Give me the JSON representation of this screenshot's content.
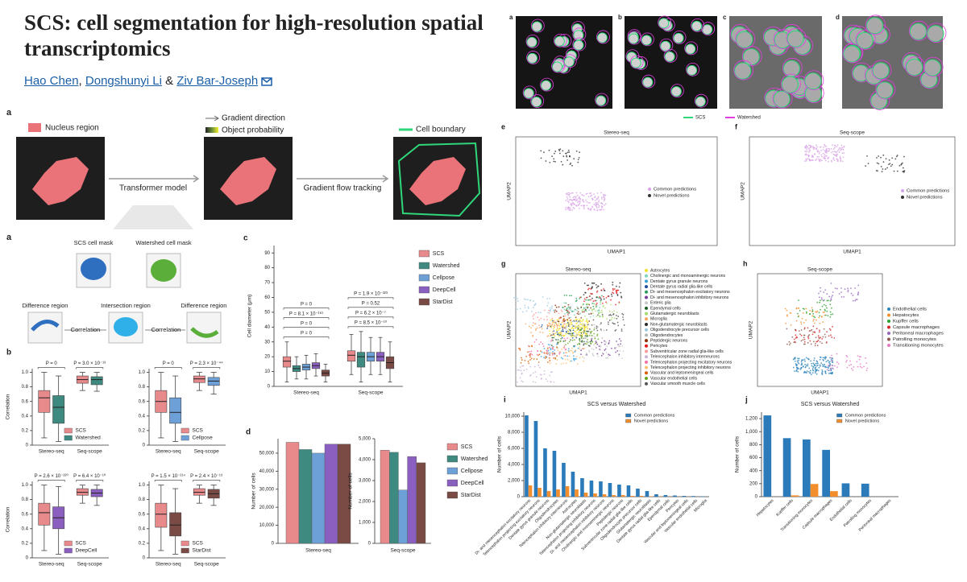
{
  "header": {
    "title": "SCS: cell segmentation for high-resolution spatial transcriptomics",
    "authors": [
      "Hao Chen",
      "Dongshunyi Li",
      "Ziv Bar-Joseph"
    ]
  },
  "figure_top": {
    "panel": "a",
    "nucleus": "Nucleus region",
    "gradient": "Gradient direction",
    "probability": "Object probability",
    "boundary": "Cell boundary",
    "steps": [
      "Transformer model",
      "Gradient flow tracking"
    ]
  },
  "figure_correlation": {
    "panel": "a",
    "masks": [
      "SCS cell mask",
      "Watershed cell mask"
    ],
    "regions": [
      "Difference region",
      "Intersection region",
      "Difference region"
    ],
    "operation": [
      "Correlation",
      "Correlation"
    ]
  },
  "images": {
    "panels": [
      "a",
      "b",
      "c",
      "d"
    ],
    "legend": [
      {
        "label": "SCS",
        "color": "#2fd67a"
      },
      {
        "label": "Watershed",
        "color": "#e040e0"
      }
    ]
  },
  "umaps": [
    {
      "panel": "e",
      "title": "Stereo-seq",
      "xlabel": "UMAP1",
      "ylabel": "UMAP2",
      "legend": [
        {
          "label": "Common predictions",
          "color": "#d8a4e6"
        },
        {
          "label": "Novel predictions",
          "color": "#333333"
        }
      ]
    },
    {
      "panel": "f",
      "title": "Seq-scope",
      "xlabel": "UMAP1",
      "ylabel": "UMAP2",
      "legend": [
        {
          "label": "Common predictions",
          "color": "#d8a4e6"
        },
        {
          "label": "Novel predictions",
          "color": "#333333"
        }
      ]
    },
    {
      "panel": "g",
      "title": "Stereo-seq",
      "xlabel": "UMAP1",
      "ylabel": "UMAP2",
      "legend": [
        {
          "label": "Astrocytes",
          "color": "#f2e12e"
        },
        {
          "label": "Cholinergic and monoaminergic neurons",
          "color": "#7fd4c1"
        },
        {
          "label": "Dentate gyrus granule neurons",
          "color": "#3aa0d8"
        },
        {
          "label": "Dentate gyrus radial glia-like cells",
          "color": "#1f4e9c"
        },
        {
          "label": "Di- and mesencephalon excitatory neurons",
          "color": "#2e9e5b"
        },
        {
          "label": "Di- and mesencephalon inhibitory neurons",
          "color": "#7b3f98"
        },
        {
          "label": "Enteric glia",
          "color": "#c9c9c9"
        },
        {
          "label": "Ependymal cells",
          "color": "#1b5e20"
        },
        {
          "label": "Glutamatergic neuroblasts",
          "color": "#a6d96a"
        },
        {
          "label": "Microglia",
          "color": "#f7a35c"
        },
        {
          "label": "Non-glutamatergic neuroblasts",
          "color": "#2b2b2b"
        },
        {
          "label": "Oligodendrocyte precursor cells",
          "color": "#9ecae1"
        },
        {
          "label": "Oligodendrocytes",
          "color": "#b3b3b3"
        },
        {
          "label": "Peptidergic neurons",
          "color": "#8c2d04"
        },
        {
          "label": "Pericytes",
          "color": "#e31a1c"
        },
        {
          "label": "Subventricular zone radial glia-like cells",
          "color": "#fb9a99"
        },
        {
          "label": "Telencephalon inhibitory interneurons",
          "color": "#cab2d6"
        },
        {
          "label": "Telencephalon projecting excitatory neurons",
          "color": "#f46fa8"
        },
        {
          "label": "Telencephalon projecting inhibitory neurons",
          "color": "#fdbf6f"
        },
        {
          "label": "Vascular and leptomeningeal cells",
          "color": "#d95f02"
        },
        {
          "label": "Vascular endothelial cells",
          "color": "#66a61e"
        },
        {
          "label": "Vascular smooth muscle cells",
          "color": "#555555"
        }
      ]
    },
    {
      "panel": "h",
      "title": "Seq-scope",
      "xlabel": "UMAP1",
      "ylabel": "UMAP2",
      "legend": [
        {
          "label": "Endothelial cells",
          "color": "#2b83ba"
        },
        {
          "label": "Hepatocytes",
          "color": "#f28e2b"
        },
        {
          "label": "Kupffer cells",
          "color": "#2ca02c"
        },
        {
          "label": "Capsule macrophages",
          "color": "#d62728"
        },
        {
          "label": "Peritoneal macrophages",
          "color": "#9467bd"
        },
        {
          "label": "Patrolling monocytes",
          "color": "#8c564b"
        },
        {
          "label": "Transitioning monocytes",
          "color": "#e377c2"
        }
      ]
    }
  ],
  "chart_data": [
    {
      "type": "box",
      "panel": "b",
      "ylabel": "Correlation",
      "categories": [
        "Stereo-seq",
        "Seq-scope"
      ],
      "ylim": [
        0,
        1.05
      ],
      "yticks": [
        0,
        0.2,
        0.4,
        0.6,
        0.8,
        {
          "value": 1,
          "label": "1.0"
        }
      ],
      "legend": "lower right",
      "annotations": [
        [
          "P = 0"
        ],
        [
          "P = 3.0 × 10⁻¹³"
        ]
      ],
      "series": [
        {
          "name": "SCS",
          "color": "#e8898b",
          "values": [
            {
              "whislo": 0.1,
              "q1": 0.45,
              "med": 0.65,
              "q3": 0.75,
              "whishi": 1.0
            },
            {
              "whislo": 0.75,
              "q1": 0.85,
              "med": 0.9,
              "q3": 0.95,
              "whishi": 1.0
            }
          ]
        },
        {
          "name": "Watershed",
          "color": "#3f8a80",
          "values": [
            {
              "whislo": 0.05,
              "q1": 0.3,
              "med": 0.52,
              "q3": 0.68,
              "whishi": 0.95
            },
            {
              "whislo": 0.74,
              "q1": 0.83,
              "med": 0.9,
              "q3": 0.94,
              "whishi": 1.0
            }
          ]
        }
      ]
    },
    {
      "type": "box",
      "categories": [
        "Stereo-seq",
        "Seq-scope"
      ],
      "ylim": [
        0,
        1.05
      ],
      "yticks": [
        0,
        0.2,
        0.4,
        0.6,
        0.8,
        {
          "value": 1,
          "label": "1.0"
        }
      ],
      "legend": "lower right",
      "annotations": [
        [
          "P = 0"
        ],
        [
          "P = 2.3 × 10⁻⁴⁴"
        ]
      ],
      "series": [
        {
          "name": "SCS",
          "color": "#e8898b",
          "values": [
            {
              "whislo": 0.1,
              "q1": 0.45,
              "med": 0.6,
              "q3": 0.75,
              "whishi": 1.0
            },
            {
              "whislo": 0.75,
              "q1": 0.86,
              "med": 0.91,
              "q3": 0.95,
              "whishi": 1.0
            }
          ]
        },
        {
          "name": "Cellpose",
          "color": "#6ea0d8",
          "values": [
            {
              "whislo": 0.05,
              "q1": 0.3,
              "med": 0.45,
              "q3": 0.65,
              "whishi": 0.95
            },
            {
              "whislo": 0.7,
              "q1": 0.82,
              "med": 0.88,
              "q3": 0.93,
              "whishi": 1.0
            }
          ]
        }
      ]
    },
    {
      "type": "box",
      "ylabel": "Correlation",
      "categories": [
        "Stereo-seq",
        "Seq-scope"
      ],
      "ylim": [
        0,
        1.05
      ],
      "yticks": [
        0,
        0.2,
        0.4,
        0.6,
        0.8,
        {
          "value": 1,
          "label": "1.0"
        }
      ],
      "legend": "lower right",
      "annotations": [
        [
          "P = 2.6 × 10⁻²²⁰"
        ],
        [
          "P = 6.4 × 10⁻¹⁰"
        ]
      ],
      "series": [
        {
          "name": "SCS",
          "color": "#e8898b",
          "values": [
            {
              "whislo": 0.1,
              "q1": 0.45,
              "med": 0.62,
              "q3": 0.75,
              "whishi": 1.0
            },
            {
              "whislo": 0.75,
              "q1": 0.86,
              "med": 0.9,
              "q3": 0.95,
              "whishi": 1.0
            }
          ]
        },
        {
          "name": "DeepCell",
          "color": "#8b5fbf",
          "values": [
            {
              "whislo": 0.05,
              "q1": 0.4,
              "med": 0.55,
              "q3": 0.7,
              "whishi": 0.98
            },
            {
              "whislo": 0.72,
              "q1": 0.84,
              "med": 0.89,
              "q3": 0.94,
              "whishi": 1.0
            }
          ]
        }
      ]
    },
    {
      "type": "box",
      "categories": [
        "Stereo-seq",
        "Seq-scope"
      ],
      "ylim": [
        0,
        1.05
      ],
      "yticks": [
        0,
        0.2,
        0.4,
        0.6,
        0.8,
        {
          "value": 1,
          "label": "1.0"
        }
      ],
      "legend": "lower right",
      "annotations": [
        [
          "P = 1.5 × 10⁻²¹⁴"
        ],
        [
          "P = 2.4 × 10⁻¹⁹"
        ]
      ],
      "series": [
        {
          "name": "SCS",
          "color": "#e8898b",
          "values": [
            {
              "whislo": 0.1,
              "q1": 0.42,
              "med": 0.6,
              "q3": 0.75,
              "whishi": 1.0
            },
            {
              "whislo": 0.75,
              "q1": 0.86,
              "med": 0.9,
              "q3": 0.95,
              "whishi": 1.0
            }
          ]
        },
        {
          "name": "StarDist",
          "color": "#7a4a44",
          "values": [
            {
              "whislo": 0.05,
              "q1": 0.3,
              "med": 0.45,
              "q3": 0.62,
              "whishi": 0.95
            },
            {
              "whislo": 0.72,
              "q1": 0.82,
              "med": 0.88,
              "q3": 0.94,
              "whishi": 1.0
            }
          ]
        }
      ]
    },
    {
      "type": "box",
      "panel": "c",
      "ylabel": "Cell diameter (μm)",
      "categories": [
        "Stereo-seq",
        "Seq-scope"
      ],
      "ylim": [
        0,
        95
      ],
      "yticks": [
        0,
        10,
        20,
        30,
        40,
        50,
        60,
        70,
        80,
        90
      ],
      "legend": "right",
      "annotations": [
        [
          "P = 0",
          "P = 0",
          "P = 8.1 × 10⁻¹⁶¹",
          "P = 0"
        ],
        [
          "P = 8.5 × 10⁻¹⁰",
          "P = 6.2 × 10⁻⁷",
          "P = 0.52",
          "P = 1.9 × 10⁻³²³"
        ]
      ],
      "series": [
        {
          "name": "SCS",
          "color": "#e8898b",
          "values": [
            {
              "whislo": 3,
              "q1": 13,
              "med": 17,
              "q3": 20,
              "whishi": 30
            },
            {
              "whislo": 8,
              "q1": 17,
              "med": 21,
              "q3": 24,
              "whishi": 35
            }
          ]
        },
        {
          "name": "Watershed",
          "color": "#3f8a80",
          "values": [
            {
              "whislo": 5,
              "q1": 10,
              "med": 12,
              "q3": 14,
              "whishi": 20
            },
            {
              "whislo": 3,
              "q1": 13,
              "med": 20,
              "q3": 23,
              "whishi": 37
            }
          ]
        },
        {
          "name": "Cellpose",
          "color": "#6ea0d8",
          "values": [
            {
              "whislo": 5,
              "q1": 11,
              "med": 13,
              "q3": 15,
              "whishi": 21
            },
            {
              "whislo": 8,
              "q1": 17,
              "med": 20,
              "q3": 23,
              "whishi": 33
            }
          ]
        },
        {
          "name": "DeepCell",
          "color": "#8b5fbf",
          "values": [
            {
              "whislo": 7,
              "q1": 12,
              "med": 14,
              "q3": 16,
              "whishi": 22
            },
            {
              "whislo": 8,
              "q1": 17,
              "med": 20,
              "q3": 23,
              "whishi": 33
            }
          ]
        },
        {
          "name": "StarDist",
          "color": "#7a4a44",
          "values": [
            {
              "whislo": 3,
              "q1": 7,
              "med": 9,
              "q3": 11,
              "whishi": 15
            },
            {
              "whislo": 3,
              "q1": 12,
              "med": 16,
              "q3": 20,
              "whishi": 30
            }
          ]
        }
      ]
    },
    {
      "type": "bar",
      "panel": "d",
      "ylabel": "Number of cells",
      "categories": [
        "Stereo-seq"
      ],
      "ylim": [
        0,
        58000
      ],
      "yticks": [
        0,
        {
          "value": 10000,
          "label": "10,000"
        },
        {
          "value": 20000,
          "label": "20,000"
        },
        {
          "value": 30000,
          "label": "30,000"
        },
        {
          "value": 40000,
          "label": "40,000"
        },
        {
          "value": 50000,
          "label": "50,000"
        }
      ],
      "series": [
        {
          "color": "#e8898b",
          "values": [
            56000
          ]
        },
        {
          "color": "#3f8a80",
          "values": [
            52000
          ]
        },
        {
          "color": "#6ea0d8",
          "values": [
            50000
          ]
        },
        {
          "color": "#8b5fbf",
          "values": [
            55000
          ]
        },
        {
          "color": "#7a4a44",
          "values": [
            55000
          ]
        }
      ]
    },
    {
      "type": "bar",
      "ylabel": "Number of cells",
      "categories": [
        "Seq-scope"
      ],
      "ylim": [
        0,
        5000
      ],
      "yticks": [
        0,
        {
          "value": 1000,
          "label": "1,000"
        },
        {
          "value": 2000,
          "label": "2,000"
        },
        {
          "value": 3000,
          "label": "3,000"
        },
        {
          "value": 4000,
          "label": "4,000"
        },
        {
          "value": 5000,
          "label": "5,000"
        }
      ],
      "legend": "right",
      "series": [
        {
          "name": "SCS",
          "color": "#e8898b",
          "values": [
            4450
          ]
        },
        {
          "name": "Watershed",
          "color": "#3f8a80",
          "values": [
            4350
          ]
        },
        {
          "name": "Cellpose",
          "color": "#6ea0d8",
          "values": [
            2550
          ]
        },
        {
          "name": "DeepCell",
          "color": "#8b5fbf",
          "values": [
            4150
          ]
        },
        {
          "name": "StarDist",
          "color": "#7a4a44",
          "values": [
            3850
          ]
        }
      ]
    },
    {
      "type": "bar",
      "panel": "i",
      "title": "SCS versus Watershed",
      "ylabel": "Number of cells",
      "legend": "upper right",
      "categories": [
        "Di- and mesencephalon excitatory neurons",
        "Telencephalon projecting excitatory neurons",
        "Dentate gyrus granule neurons",
        "Oligodendrocytes",
        "Telencephalon inhibitory interneurons",
        "Astrocytes",
        "Non-glutamatergic neuroblasts",
        "Telencephalon projecting inhibitory neurons",
        "Di- and mesencephalon inhibitory neurons",
        "Cholinergic and monoaminergic neurons",
        "Peptidergic neurons",
        "Subventricular zone radial glia-like cells",
        "Oligodendrocyte precursor cells",
        "Glutamatergic neuroblasts",
        "Dentate gyrus radial glia-like cells",
        "Ependymal cells",
        "Pericytes",
        "Vascular and leptomeningeal cells",
        "Vascular endothelial cells",
        "Microglia"
      ],
      "ylim": [
        0,
        10500
      ],
      "yticks": [
        0,
        {
          "value": 2000,
          "label": "2,000"
        },
        {
          "value": 4000,
          "label": "4,000"
        },
        {
          "value": 6000,
          "label": "6,000"
        },
        {
          "value": 8000,
          "label": "8,000"
        },
        {
          "value": 10000,
          "label": "10,000"
        }
      ],
      "series": [
        {
          "name": "Common predictions",
          "color": "#2b7bba",
          "values": [
            10100,
            9400,
            6000,
            5700,
            4200,
            3100,
            2300,
            2000,
            1900,
            1700,
            1500,
            1400,
            1000,
            700,
            300,
            200,
            150,
            100,
            80,
            50
          ]
        },
        {
          "name": "Novel predictions",
          "color": "#f28e2b",
          "values": [
            1400,
            1100,
            700,
            900,
            1300,
            900,
            500,
            400,
            300,
            200,
            200,
            100,
            100,
            50,
            30,
            20,
            10,
            10,
            5,
            5
          ]
        }
      ]
    },
    {
      "type": "bar",
      "panel": "j",
      "title": "SCS versus Watershed",
      "ylabel": "Number of cells",
      "legend": "upper right",
      "categories": [
        "Hepatocytes",
        "Kupffer cells",
        "Transitioning monocytes",
        "Capsule macrophages",
        "Endothelial cells",
        "Patrolling monocytes",
        "Peritoneal macrophages"
      ],
      "ylim": [
        0,
        1300
      ],
      "yticks": [
        0,
        200,
        400,
        600,
        800,
        {
          "value": 1000,
          "label": "1,000"
        },
        {
          "value": 1200,
          "label": "1,200"
        }
      ],
      "series": [
        {
          "name": "Common predictions",
          "color": "#2b7bba",
          "values": [
            1250,
            900,
            880,
            720,
            205,
            200,
            0
          ]
        },
        {
          "name": "Novel predictions",
          "color": "#f28e2b",
          "values": [
            0,
            20,
            195,
            85,
            0,
            0,
            0
          ]
        }
      ]
    }
  ]
}
